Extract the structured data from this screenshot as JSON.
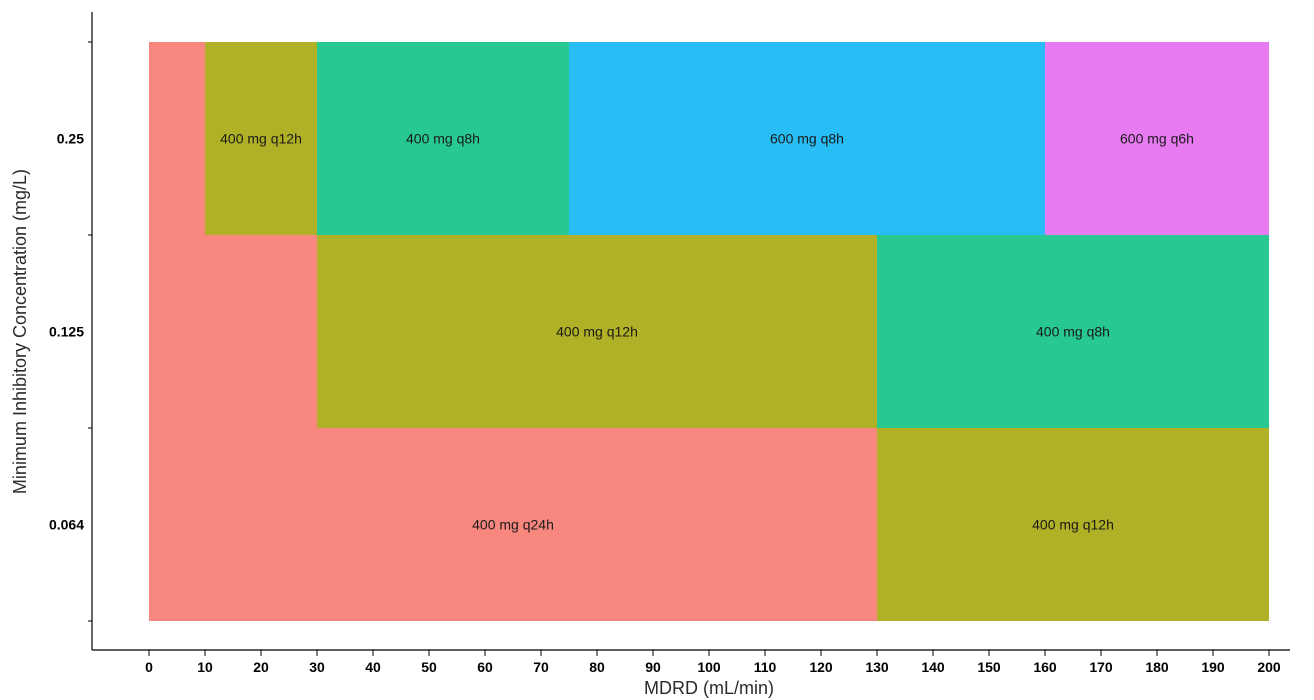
{
  "chart_data": {
    "type": "heatmap",
    "title": "",
    "xlabel": "MDRD (mL/min)",
    "ylabel": "Minimum Inhibitory Concentration (mg/L)",
    "xlim": [
      0,
      200
    ],
    "x_ticks": [
      0,
      10,
      20,
      30,
      40,
      50,
      60,
      70,
      80,
      90,
      100,
      110,
      120,
      130,
      140,
      150,
      160,
      170,
      180,
      190,
      200
    ],
    "y_categories": [
      "0.064",
      "0.125",
      "0.25"
    ],
    "grid": false,
    "legend": "none",
    "colors": {
      "400 mg q24h": "#F8877F",
      "400 mg q12h": "#B1B128",
      "400 mg q8h": "#28C990",
      "600 mg q8h": "#28BDF5",
      "600 mg q6h": "#E97BF2"
    },
    "cells": [
      {
        "mic": "0.25",
        "x_start": 0,
        "x_end": 10,
        "dose": "400 mg q24h",
        "label": ""
      },
      {
        "mic": "0.25",
        "x_start": 10,
        "x_end": 30,
        "dose": "400 mg q12h",
        "label": "400 mg q12h"
      },
      {
        "mic": "0.25",
        "x_start": 30,
        "x_end": 75,
        "dose": "400 mg q8h",
        "label": "400 mg q8h"
      },
      {
        "mic": "0.25",
        "x_start": 75,
        "x_end": 160,
        "dose": "600 mg q8h",
        "label": "600 mg q8h"
      },
      {
        "mic": "0.25",
        "x_start": 160,
        "x_end": 200,
        "dose": "600 mg q6h",
        "label": "600 mg q6h"
      },
      {
        "mic": "0.125",
        "x_start": 0,
        "x_end": 30,
        "dose": "400 mg q24h",
        "label": ""
      },
      {
        "mic": "0.125",
        "x_start": 30,
        "x_end": 130,
        "dose": "400 mg q12h",
        "label": "400 mg q12h"
      },
      {
        "mic": "0.125",
        "x_start": 130,
        "x_end": 200,
        "dose": "400 mg q8h",
        "label": "400 mg q8h"
      },
      {
        "mic": "0.064",
        "x_start": 0,
        "x_end": 130,
        "dose": "400 mg q24h",
        "label": "400 mg q24h"
      },
      {
        "mic": "0.064",
        "x_start": 130,
        "x_end": 200,
        "dose": "400 mg q12h",
        "label": "400 mg q12h"
      }
    ]
  }
}
